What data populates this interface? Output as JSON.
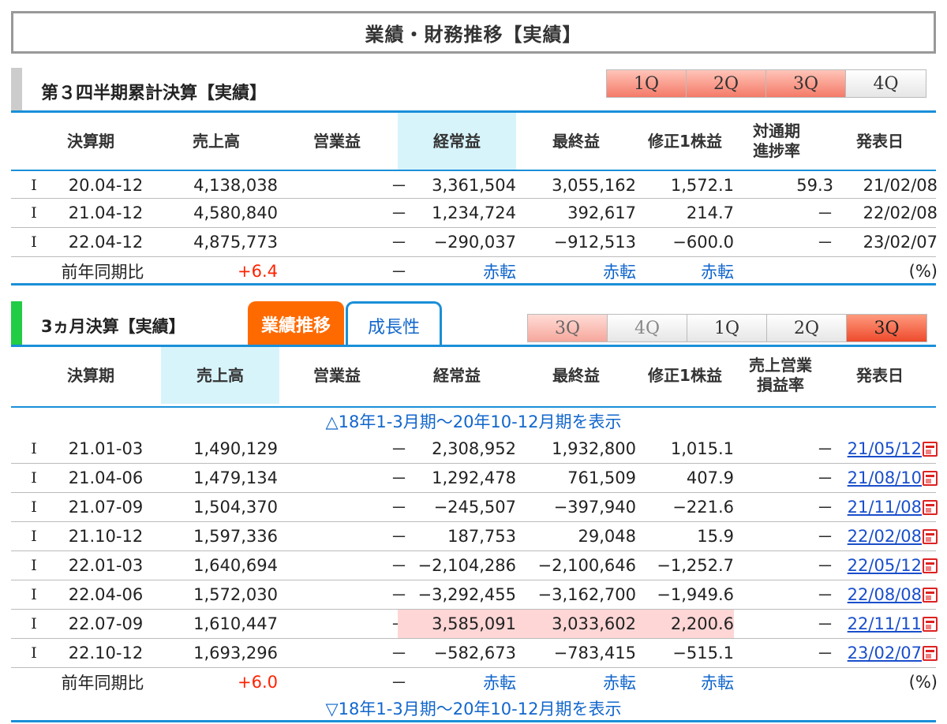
{
  "page_title": "業績・財務推移【実績】",
  "section1": {
    "title": "第３四半期累計決算【実績】",
    "bar_color": "#cccccc",
    "tabs": [
      "1Q",
      "2Q",
      "3Q",
      "4Q"
    ],
    "headers": {
      "period": "決算期",
      "sales": "売上高",
      "operating": "営業益",
      "ordinary": "経常益",
      "net": "最終益",
      "eps": "修正1株益",
      "progress_1": "対通期",
      "progress_2": "進捗率",
      "date": "発表日"
    },
    "rows": [
      {
        "mark": "I",
        "period": "20.04-12",
        "sales": "4,138,038",
        "operating": "－",
        "ordinary": "3,361,504",
        "net": "3,055,162",
        "eps": "1,572.1",
        "progress": "59.3",
        "date": "21/02/08"
      },
      {
        "mark": "I",
        "period": "21.04-12",
        "sales": "4,580,840",
        "operating": "－",
        "ordinary": "1,234,724",
        "net": "392,617",
        "eps": "214.7",
        "progress": "－",
        "date": "22/02/08"
      },
      {
        "mark": "I",
        "period": "22.04-12",
        "sales": "4,875,773",
        "operating": "－",
        "ordinary": "−290,037",
        "net": "−912,513",
        "eps": "−600.0",
        "progress": "－",
        "date": "23/02/07"
      }
    ],
    "yoy": {
      "label": "前年同期比",
      "sales": "+6.4",
      "operating": "－",
      "ordinary": "赤転",
      "net": "赤転",
      "eps": "赤転",
      "unit": "(%)"
    }
  },
  "section2": {
    "title": "3ヵ月決算【実績】",
    "bar_color": "#22cc44",
    "tab_active": "業績推移",
    "tab_other": "成長性",
    "qtabs": [
      "3Q",
      "4Q",
      "1Q",
      "2Q",
      "3Q"
    ],
    "headers": {
      "period": "決算期",
      "sales": "売上高",
      "operating": "営業益",
      "ordinary": "経常益",
      "net": "最終益",
      "eps": "修正1株益",
      "margin_1": "売上営業",
      "margin_2": "損益率",
      "date": "発表日"
    },
    "toggle_top": "△18年1-3月期～20年10-12月期を表示",
    "rows": [
      {
        "mark": "I",
        "period": "21.01-03",
        "sales": "1,490,129",
        "operating": "－",
        "ordinary": "2,308,952",
        "net": "1,932,800",
        "eps": "1,015.1",
        "margin": "－",
        "date": "21/05/12"
      },
      {
        "mark": "I",
        "period": "21.04-06",
        "sales": "1,479,134",
        "operating": "－",
        "ordinary": "1,292,478",
        "net": "761,509",
        "eps": "407.9",
        "margin": "－",
        "date": "21/08/10"
      },
      {
        "mark": "I",
        "period": "21.07-09",
        "sales": "1,504,370",
        "operating": "－",
        "ordinary": "−245,507",
        "net": "−397,940",
        "eps": "−221.6",
        "margin": "－",
        "date": "21/11/08"
      },
      {
        "mark": "I",
        "period": "21.10-12",
        "sales": "1,597,336",
        "operating": "－",
        "ordinary": "187,753",
        "net": "29,048",
        "eps": "15.9",
        "margin": "－",
        "date": "22/02/08"
      },
      {
        "mark": "I",
        "period": "22.01-03",
        "sales": "1,640,694",
        "operating": "－",
        "ordinary": "−2,104,286",
        "net": "−2,100,646",
        "eps": "−1,252.7",
        "margin": "－",
        "date": "22/05/12"
      },
      {
        "mark": "I",
        "period": "22.04-06",
        "sales": "1,572,030",
        "operating": "－",
        "ordinary": "−3,292,455",
        "net": "−3,162,700",
        "eps": "−1,949.6",
        "margin": "－",
        "date": "22/08/08"
      },
      {
        "mark": "I",
        "period": "22.07-09",
        "sales": "1,610,447",
        "operating": "－",
        "ordinary": "3,585,091",
        "net": "3,033,602",
        "eps": "2,200.6",
        "margin": "－",
        "date": "22/11/11"
      },
      {
        "mark": "I",
        "period": "22.10-12",
        "sales": "1,693,296",
        "operating": "－",
        "ordinary": "−582,673",
        "net": "−783,415",
        "eps": "−515.1",
        "margin": "－",
        "date": "23/02/07"
      }
    ],
    "yoy": {
      "label": "前年同期比",
      "sales": "+6.0",
      "operating": "－",
      "ordinary": "赤転",
      "net": "赤転",
      "eps": "赤転",
      "unit": "(%)"
    },
    "toggle_bottom": "▽18年1-3月期～20年10-12月期を表示"
  },
  "colors": {
    "accent_blue": "#1a8fd8",
    "positive_red": "#ff2200",
    "tab_orange": "#ff6a00",
    "highlight_pink": "#ffd6d6"
  }
}
